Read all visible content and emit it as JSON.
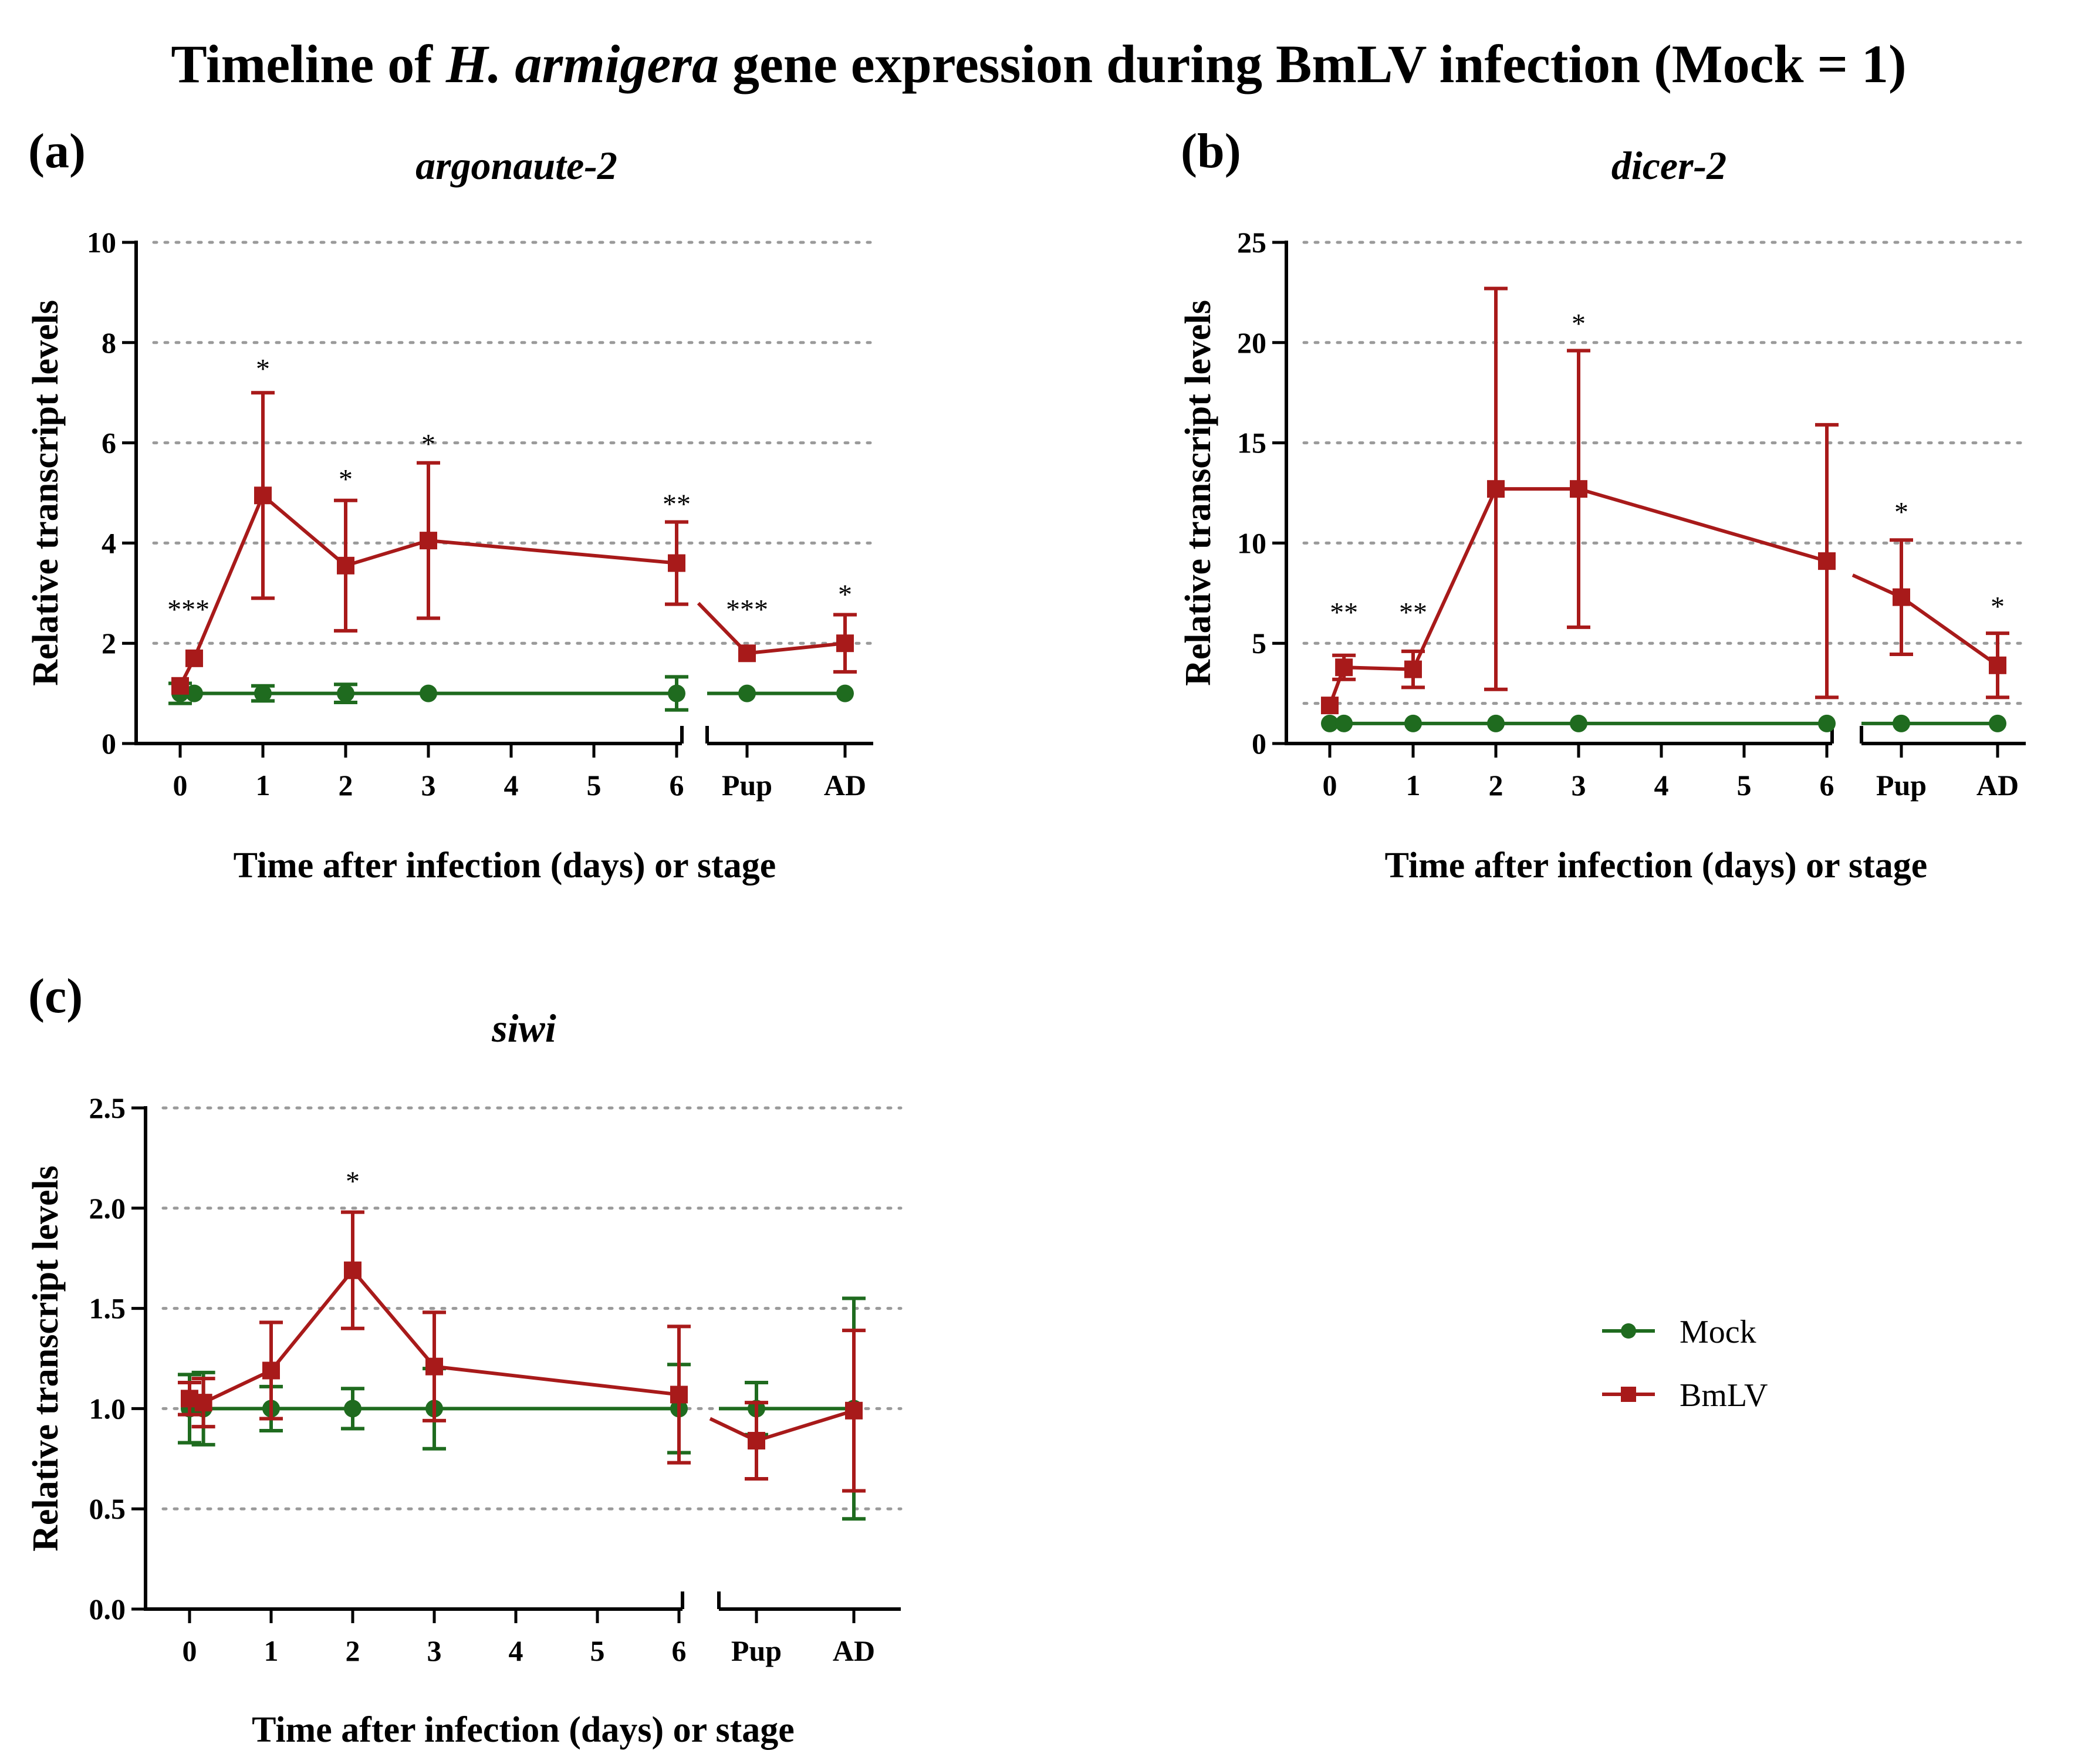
{
  "figure": {
    "title_pre": "Timeline of ",
    "title_italic": "H. armigera",
    "title_post": " gene expression during BmLV infection (Mock = 1)"
  },
  "legend": {
    "mock_label": "Mock",
    "bmlv_label": "BmLV"
  },
  "colors": {
    "mock": "#1f6b1f",
    "bmlv": "#a81a1a"
  },
  "chart_data": [
    {
      "type": "line",
      "panel": "(a)",
      "title": "argonaute-2",
      "xlabel": "Time after infection (days) or stage",
      "ylabel": "Relative transcript levels",
      "ylim": [
        0,
        10
      ],
      "yticks": [
        "0",
        "2",
        "4",
        "6",
        "8",
        "10"
      ],
      "ytick_values": [
        0,
        2,
        4,
        6,
        8,
        10
      ],
      "xticks": [
        "0",
        "1",
        "2",
        "3",
        "4",
        "5",
        "6"
      ],
      "xticks_stage": [
        "Pup",
        "AD"
      ],
      "series": [
        {
          "name": "Mock",
          "x": [
            0,
            0.17,
            1,
            2,
            3,
            6
          ],
          "values": [
            1.0,
            1.0,
            1.0,
            1.0,
            1.0,
            1.0
          ],
          "errors": [
            0.2,
            0.0,
            0.15,
            0.18,
            0.0,
            0.33
          ],
          "stage_values": [
            1.0,
            1.0
          ],
          "stage_errors": [
            0.0,
            0.0
          ]
        },
        {
          "name": "BmLV",
          "x": [
            0,
            0.17,
            1,
            2,
            3,
            6
          ],
          "values": [
            1.15,
            1.7,
            4.95,
            3.55,
            4.05,
            3.6
          ],
          "errors": [
            0.0,
            0.0,
            2.05,
            1.3,
            1.55,
            0.82
          ],
          "stage_values": [
            1.8,
            2.0
          ],
          "stage_errors": [
            0.0,
            0.57
          ],
          "break_lead": 2.8
        }
      ],
      "annotations": [
        {
          "text": "***",
          "x": 0.1,
          "y": 2.7
        },
        {
          "text": "*",
          "x": 1,
          "y": 7.5
        },
        {
          "text": "*",
          "x": 2,
          "y": 5.3
        },
        {
          "text": "*",
          "x": 3,
          "y": 6.0
        },
        {
          "text": "**",
          "x": 6,
          "y": 4.8
        },
        {
          "text": "***",
          "stage": 0,
          "y": 2.7
        },
        {
          "text": "*",
          "stage": 1,
          "y": 3.0
        }
      ]
    },
    {
      "type": "line",
      "panel": "(b)",
      "title": "dicer-2",
      "xlabel": "Time after infection (days) or stage",
      "ylabel": "Relative transcript levels",
      "ylim": [
        0,
        25
      ],
      "yticks": [
        "0",
        "5",
        "10",
        "15",
        "20",
        "25"
      ],
      "ytick_values": [
        0,
        5,
        10,
        15,
        20,
        25
      ],
      "extra_grid": [
        2
      ],
      "xticks": [
        "0",
        "1",
        "2",
        "3",
        "4",
        "5",
        "6"
      ],
      "xticks_stage": [
        "Pup",
        "AD"
      ],
      "series": [
        {
          "name": "Mock",
          "x": [
            0,
            0.17,
            1,
            2,
            3,
            6
          ],
          "values": [
            1.0,
            1.0,
            1.0,
            1.0,
            1.0,
            1.0
          ],
          "errors": [
            0,
            0,
            0,
            0,
            0,
            0
          ],
          "stage_values": [
            1.0,
            1.0
          ],
          "stage_errors": [
            0,
            0
          ]
        },
        {
          "name": "BmLV",
          "x": [
            0,
            0.17,
            1,
            2,
            3,
            6
          ],
          "values": [
            1.9,
            3.8,
            3.7,
            12.7,
            12.7,
            9.1
          ],
          "errors": [
            0,
            0.6,
            0.9,
            10.0,
            6.9,
            6.8
          ],
          "stage_values": [
            7.3,
            3.9
          ],
          "stage_errors": [
            2.85,
            1.6
          ],
          "break_lead": 8.4
        }
      ],
      "annotations": [
        {
          "text": "**",
          "x": 0.17,
          "y": 6.6
        },
        {
          "text": "**",
          "x": 1,
          "y": 6.6
        },
        {
          "text": "*",
          "x": 3,
          "y": 21.0
        },
        {
          "text": "*",
          "stage": 0,
          "y": 11.6
        },
        {
          "text": "*",
          "stage": 1,
          "y": 6.9
        }
      ]
    },
    {
      "type": "line",
      "panel": "(c)",
      "title": "siwi",
      "xlabel": "Time after infection (days) or stage",
      "ylabel": "Relative transcript levels",
      "ylim": [
        0,
        2.5
      ],
      "yticks": [
        "0.0",
        "0.5",
        "1.0",
        "1.5",
        "2.0",
        "2.5"
      ],
      "ytick_values": [
        0,
        0.5,
        1.0,
        1.5,
        2.0,
        2.5
      ],
      "xticks": [
        "0",
        "1",
        "2",
        "3",
        "4",
        "5",
        "6"
      ],
      "xticks_stage": [
        "Pup",
        "AD"
      ],
      "series": [
        {
          "name": "Mock",
          "x": [
            0,
            0.17,
            1,
            2,
            3,
            6
          ],
          "values": [
            1.0,
            1.0,
            1.0,
            1.0,
            1.0,
            1.0
          ],
          "errors": [
            0.17,
            0.18,
            0.11,
            0.1,
            0.2,
            0.22
          ],
          "stage_values": [
            1.0,
            1.0
          ],
          "stage_errors": [
            0.13,
            0.55
          ]
        },
        {
          "name": "BmLV",
          "x": [
            0,
            0.17,
            1,
            2,
            3,
            6
          ],
          "values": [
            1.05,
            1.03,
            1.19,
            1.69,
            1.21,
            1.07
          ],
          "errors": [
            0.08,
            0.12,
            0.24,
            0.29,
            0.27,
            0.34
          ],
          "stage_values": [
            0.84,
            0.99
          ],
          "stage_errors": [
            0.19,
            0.4
          ],
          "break_lead": 0.95
        }
      ],
      "annotations": [
        {
          "text": "*",
          "x": 2,
          "y": 2.14
        }
      ]
    }
  ]
}
